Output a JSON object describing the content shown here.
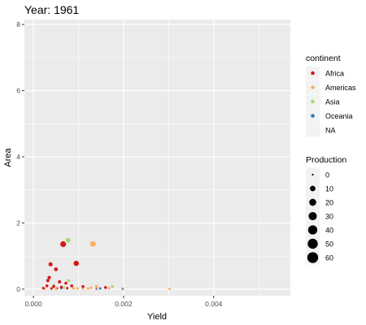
{
  "chart_data": {
    "type": "scatter",
    "title": "Year: 1961",
    "xlabel": "Yield",
    "ylabel": "Area",
    "xlim": [
      -0.0002,
      0.0057
    ],
    "ylim": [
      -0.2,
      8.15
    ],
    "x_ticks": [
      0.0,
      0.002,
      0.004
    ],
    "x_tick_labels": [
      "0.000",
      "0.002",
      "0.004"
    ],
    "y_ticks": [
      0,
      2,
      4,
      6,
      8
    ],
    "y_tick_labels": [
      "0",
      "2",
      "4",
      "6",
      "8"
    ],
    "grid": true,
    "legend_position": "right",
    "legend_continent": {
      "title": "continent",
      "entries": [
        {
          "label": "Africa",
          "color": "#d7191c"
        },
        {
          "label": "Americas",
          "color": "#fdae61"
        },
        {
          "label": "Asia",
          "color": "#a6d96a"
        },
        {
          "label": "Oceania",
          "color": "#2c7bb6"
        },
        {
          "label": "NA",
          "color": ""
        }
      ]
    },
    "legend_production": {
      "title": "Production",
      "entries": [
        {
          "label": "0",
          "value": 0
        },
        {
          "label": "10",
          "value": 10
        },
        {
          "label": "20",
          "value": 20
        },
        {
          "label": "30",
          "value": 30
        },
        {
          "label": "40",
          "value": 40
        },
        {
          "label": "50",
          "value": 50
        },
        {
          "label": "60",
          "value": 60
        }
      ]
    },
    "series": [
      {
        "continent": "Africa",
        "color": "#d7191c",
        "points": [
          {
            "x": 0.00066,
            "y": 1.36,
            "production": 12
          },
          {
            "x": 0.00095,
            "y": 0.78,
            "production": 9
          },
          {
            "x": 0.00038,
            "y": 0.75,
            "production": 4
          },
          {
            "x": 0.0005,
            "y": 0.6,
            "production": 3
          },
          {
            "x": 0.00035,
            "y": 0.35,
            "production": 2
          },
          {
            "x": 0.00032,
            "y": 0.26,
            "production": 1.5
          },
          {
            "x": 0.00058,
            "y": 0.22,
            "production": 1.5
          },
          {
            "x": 0.00072,
            "y": 0.18,
            "production": 1
          },
          {
            "x": 0.0003,
            "y": 0.1,
            "production": 1
          },
          {
            "x": 0.00045,
            "y": 0.08,
            "production": 1
          },
          {
            "x": 0.00062,
            "y": 0.06,
            "production": 0.8
          },
          {
            "x": 0.00085,
            "y": 0.1,
            "production": 1
          },
          {
            "x": 0.0011,
            "y": 0.08,
            "production": 0.8
          },
          {
            "x": 0.0016,
            "y": 0.05,
            "production": 1
          },
          {
            "x": 0.00022,
            "y": 0.03,
            "production": 0.5
          },
          {
            "x": 0.0004,
            "y": 0.02,
            "production": 0.4
          },
          {
            "x": 0.00052,
            "y": 0.02,
            "production": 0.3
          },
          {
            "x": 0.00075,
            "y": 0.03,
            "production": 0.4
          }
        ]
      },
      {
        "continent": "Americas",
        "color": "#fdae61",
        "points": [
          {
            "x": 0.00132,
            "y": 1.37,
            "production": 10
          },
          {
            "x": 0.0014,
            "y": 0.08,
            "production": 1
          },
          {
            "x": 0.00128,
            "y": 0.04,
            "production": 0.5
          },
          {
            "x": 0.00088,
            "y": 0.03,
            "production": 0.6
          },
          {
            "x": 0.00098,
            "y": 0.02,
            "production": 0.4
          },
          {
            "x": 0.0011,
            "y": 0.02,
            "production": 0.4
          },
          {
            "x": 0.00121,
            "y": 0.02,
            "production": 0.4
          },
          {
            "x": 0.00168,
            "y": 0.03,
            "production": 0.4
          },
          {
            "x": 0.00302,
            "y": 0.01,
            "production": 0.3
          },
          {
            "x": 0.00025,
            "y": 0.01,
            "production": 0.3
          },
          {
            "x": 0.0005,
            "y": 0.01,
            "production": 0.3
          }
        ]
      },
      {
        "continent": "Asia",
        "color": "#a6d96a",
        "points": [
          {
            "x": 0.00077,
            "y": 1.48,
            "production": 6
          },
          {
            "x": 0.00175,
            "y": 0.08,
            "production": 1
          },
          {
            "x": 0.00078,
            "y": 0.26,
            "production": 1
          },
          {
            "x": 0.00045,
            "y": 0.12,
            "production": 0.5
          },
          {
            "x": 0.00068,
            "y": 0.04,
            "production": 0.4
          },
          {
            "x": 0.0009,
            "y": 0.02,
            "production": 0.3
          }
        ]
      },
      {
        "continent": "Oceania",
        "color": "#2c7bb6",
        "points": [
          {
            "x": 0.00062,
            "y": 0.03,
            "production": 0.3
          },
          {
            "x": 0.00148,
            "y": 0.02,
            "production": 0.3
          }
        ]
      },
      {
        "continent": "NA",
        "color": "#888888",
        "points": [
          {
            "x": 0.00198,
            "y": 0.01,
            "production": 0.2
          },
          {
            "x": 0.0014,
            "y": 0.01,
            "production": 0.2
          }
        ]
      }
    ]
  }
}
